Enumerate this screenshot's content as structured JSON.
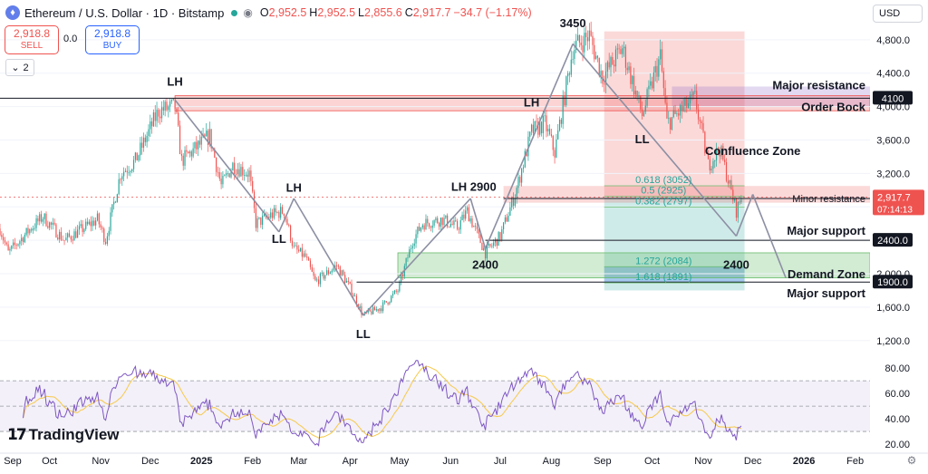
{
  "header": {
    "title": "Ethereum / U.S. Dollar · 1D · Bitstamp",
    "ohlc": [
      {
        "k": "O",
        "v": "2,952.5"
      },
      {
        "k": "H",
        "v": "2,952.5"
      },
      {
        "k": "L",
        "v": "2,855.6"
      },
      {
        "k": "C",
        "v": "2,917.7"
      }
    ],
    "change": "−34.7 (−1.17%)"
  },
  "trade": {
    "sell_price": "2,918.8",
    "sell_label": "SELL",
    "spread": "0.0",
    "buy_price": "2,918.8",
    "buy_label": "BUY"
  },
  "indicator_count": "2",
  "currency": "USD",
  "branding": "TradingView",
  "colors": {
    "up": "#26a69a",
    "down": "#ef5350",
    "accent": "#2962ff",
    "rsi": "#7e57c2"
  },
  "chart_data": {
    "type": "candlestick",
    "symbol": "ETH/USD",
    "timeframe": "1D",
    "y_axis": {
      "ticks": [
        "1,200.0",
        "1,600.0",
        "2,000.0",
        "2,400.0",
        "2,800.0",
        "3,200.0",
        "3,600.0",
        "4,000.0",
        "4,400.0",
        "4,800.0"
      ],
      "tick_values": [
        1200,
        1600,
        2000,
        2400,
        2800,
        3200,
        3600,
        4000,
        4400,
        4800
      ],
      "range": [
        1100,
        4950
      ]
    },
    "x_axis": {
      "labels": [
        "Sep",
        "Oct",
        "Nov",
        "Dec",
        "2025",
        "Feb",
        "Mar",
        "Apr",
        "May",
        "Jun",
        "Jul",
        "Aug",
        "Sep",
        "Oct",
        "Nov",
        "Dec",
        "2026",
        "Feb"
      ],
      "start": "2024-09-01",
      "end": "2026-02-10"
    },
    "price_path": [
      [
        "2024-09-01",
        2540
      ],
      [
        "2024-09-06",
        2250
      ],
      [
        "2024-09-20",
        2550
      ],
      [
        "2024-09-27",
        2680
      ],
      [
        "2024-10-10",
        2400
      ],
      [
        "2024-10-30",
        2650
      ],
      [
        "2024-11-04",
        2400
      ],
      [
        "2024-11-13",
        3200
      ],
      [
        "2024-11-22",
        3350
      ],
      [
        "2024-12-06",
        3950
      ],
      [
        "2024-12-16",
        4000
      ],
      [
        "2024-12-20",
        3350
      ],
      [
        "2025-01-06",
        3650
      ],
      [
        "2025-01-13",
        3050
      ],
      [
        "2025-01-20",
        3300
      ],
      [
        "2025-01-30",
        3200
      ],
      [
        "2025-02-03",
        2600
      ],
      [
        "2025-02-12",
        2700
      ],
      [
        "2025-02-20",
        2750
      ],
      [
        "2025-02-26",
        2300
      ],
      [
        "2025-03-05",
        2200
      ],
      [
        "2025-03-11",
        1900
      ],
      [
        "2025-03-24",
        2100
      ],
      [
        "2025-04-02",
        1800
      ],
      [
        "2025-04-09",
        1500
      ],
      [
        "2025-04-20",
        1600
      ],
      [
        "2025-04-30",
        1800
      ],
      [
        "2025-05-09",
        2400
      ],
      [
        "2025-05-15",
        2600
      ],
      [
        "2025-05-27",
        2650
      ],
      [
        "2025-06-05",
        2550
      ],
      [
        "2025-06-11",
        2750
      ],
      [
        "2025-06-22",
        2250
      ],
      [
        "2025-07-01",
        2450
      ],
      [
        "2025-07-10",
        2950
      ],
      [
        "2025-07-20",
        3700
      ],
      [
        "2025-07-28",
        3800
      ],
      [
        "2025-08-03",
        3450
      ],
      [
        "2025-08-14",
        4700
      ],
      [
        "2025-08-24",
        4850
      ],
      [
        "2025-09-01",
        4350
      ],
      [
        "2025-09-13",
        4700
      ],
      [
        "2025-09-25",
        3900
      ],
      [
        "2025-10-06",
        4600
      ],
      [
        "2025-10-10",
        3800
      ],
      [
        "2025-10-27",
        4100
      ],
      [
        "2025-11-04",
        3300
      ],
      [
        "2025-11-11",
        3500
      ],
      [
        "2025-11-21",
        2750
      ],
      [
        "2025-11-24",
        2917.7
      ]
    ],
    "current_price": 2917.7,
    "current_price_label": "2,917.7",
    "countdown": "07:14:13",
    "horizontal_levels": [
      {
        "label": "Major resistance",
        "value": 4100,
        "tag": "4100"
      },
      {
        "label": "Major support",
        "value": 2400,
        "tag": "2400.0"
      },
      {
        "label": "Major support",
        "value": 1900,
        "tag": "1900.0"
      },
      {
        "label": "Minor resistance",
        "value": 2900,
        "tag": "2900.0"
      }
    ],
    "zones": [
      {
        "label": "Order Bock",
        "from": 3950,
        "to": 4130
      },
      {
        "label": "Demand Zone",
        "from": 1950,
        "to": 2250
      }
    ],
    "fibonacci": [
      {
        "ratio": "0.618",
        "price": "(3052)",
        "value": 3052
      },
      {
        "ratio": "0.5",
        "price": "(2925)",
        "value": 2925
      },
      {
        "ratio": "0.382",
        "price": "(2797)",
        "value": 2797
      },
      {
        "ratio": "1.272",
        "price": "(2084)",
        "value": 2084
      },
      {
        "ratio": "1.618",
        "price": "(1891)",
        "value": 1891
      }
    ],
    "annotations": [
      {
        "text": "LH",
        "date": "2024-12-16",
        "price": 4250
      },
      {
        "text": "LL",
        "date": "2025-02-17",
        "price": 2370
      },
      {
        "text": "LH",
        "date": "2025-02-26",
        "price": 2980
      },
      {
        "text": "LL",
        "date": "2025-04-09",
        "price": 1230
      },
      {
        "text": "LH 2900",
        "date": "2025-06-15",
        "price": 2990
      },
      {
        "text": "2400",
        "date": "2025-06-22",
        "price": 2060
      },
      {
        "text": "LH",
        "date": "2025-07-20",
        "price": 4000
      },
      {
        "text": "3450",
        "date": "2025-08-14",
        "price": 4950
      },
      {
        "text": "LL",
        "date": "2025-09-25",
        "price": 3560
      },
      {
        "text": "2400",
        "date": "2025-11-21",
        "price": 2060
      },
      {
        "text": "Confluence Zone",
        "date": "2025-12-01",
        "price": 3420
      }
    ],
    "rsi": {
      "ticks": [
        "20.00",
        "40.00",
        "60.00",
        "80.00"
      ],
      "tick_values": [
        20,
        40,
        60,
        80
      ],
      "range": [
        15,
        88
      ],
      "levels": [
        70,
        50,
        30
      ]
    }
  }
}
